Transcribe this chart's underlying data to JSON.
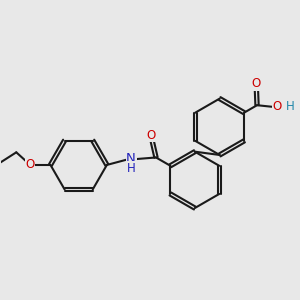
{
  "bg_color": "#e8e8e8",
  "bond_color": "#1a1a1a",
  "bond_lw": 1.5,
  "dbo": 0.05,
  "colors": {
    "O": "#cc0000",
    "N": "#2222bb",
    "H": "#2288aa",
    "C": "#1a1a1a"
  },
  "fs": 8.5,
  "ring_r": 0.85
}
